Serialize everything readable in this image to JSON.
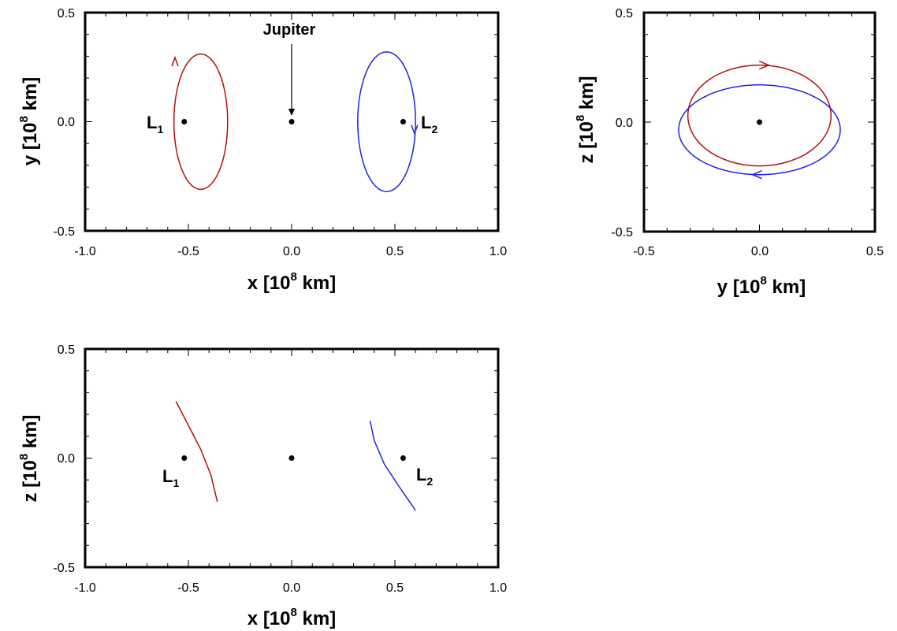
{
  "chart_data": [
    {
      "type": "line",
      "xlabel": "x  [10^8 km]",
      "ylabel": "y [10^8 km]",
      "xlim": [
        -1.0,
        1.0
      ],
      "ylim": [
        -0.5,
        0.5
      ],
      "xticks": [
        "-1.0",
        "-0.5",
        "0.0",
        "0.5",
        "1.0"
      ],
      "yticks": [
        "-0.5",
        "0.0",
        "0.5"
      ],
      "grid": false,
      "series": [
        {
          "color": "#b01010",
          "center": [
            -0.44,
            0.0
          ],
          "radii": [
            0.13,
            0.31
          ],
          "x_range": [
            -0.57,
            -0.31
          ],
          "y_range": [
            -0.31,
            0.31
          ]
        },
        {
          "color": "#2222dd",
          "center": [
            0.46,
            0.0
          ],
          "radii": [
            0.14,
            0.32
          ],
          "x_range": [
            0.32,
            0.6
          ],
          "y_range": [
            -0.32,
            0.32
          ]
        }
      ],
      "points": [
        {
          "label": "L",
          "sub": "1",
          "x": -0.52,
          "y": 0.0
        },
        {
          "label": "Jupiter",
          "x": 0.0,
          "y": 0.0
        },
        {
          "label": "L",
          "sub": "2",
          "x": 0.54,
          "y": 0.0
        }
      ]
    },
    {
      "type": "line",
      "xlabel": "y  [10^8 km]",
      "ylabel": "z [10^8 km]",
      "xlim": [
        -0.5,
        0.5
      ],
      "ylim": [
        -0.5,
        0.5
      ],
      "xticks": [
        "-0.5",
        "0.0",
        "0.5"
      ],
      "yticks": [
        "-0.5",
        "0.0",
        "0.5"
      ],
      "grid": false,
      "series": [
        {
          "color": "#b01010",
          "center": [
            0.0,
            0.03
          ],
          "radii": [
            0.31,
            0.23
          ],
          "y_range": [
            -0.31,
            0.31
          ],
          "z_range": [
            -0.2,
            0.26
          ]
        },
        {
          "color": "#2222dd",
          "center": [
            0.0,
            -0.035
          ],
          "radii": [
            0.35,
            0.205
          ],
          "y_range": [
            -0.35,
            0.35
          ],
          "z_range": [
            -0.24,
            0.17
          ]
        }
      ],
      "points": [
        {
          "x": 0.0,
          "y": 0.0
        }
      ]
    },
    {
      "type": "line",
      "xlabel": "x  [10^8 km]",
      "ylabel": "z [10^8 km]",
      "xlim": [
        -1.0,
        1.0
      ],
      "ylim": [
        -0.5,
        0.5
      ],
      "xticks": [
        "-1.0",
        "-0.5",
        "0.0",
        "0.5",
        "1.0"
      ],
      "yticks": [
        "-0.5",
        "0.0",
        "0.5"
      ],
      "grid": false,
      "series": [
        {
          "color": "#b01010",
          "x": [
            -0.56,
            -0.5,
            -0.44,
            -0.39,
            -0.36
          ],
          "y": [
            0.26,
            0.15,
            0.04,
            -0.08,
            -0.2
          ]
        },
        {
          "color": "#2222dd",
          "x": [
            0.38,
            0.4,
            0.45,
            0.52,
            0.6
          ],
          "y": [
            0.17,
            0.08,
            -0.03,
            -0.13,
            -0.24
          ]
        }
      ],
      "points": [
        {
          "label": "L",
          "sub": "1",
          "x": -0.52,
          "y": 0.0
        },
        {
          "x": 0.0,
          "y": 0.0
        },
        {
          "label": "L",
          "sub": "2",
          "x": 0.54,
          "y": 0.0
        }
      ]
    }
  ],
  "labels": {
    "jupiter": "Jupiter",
    "l": "L",
    "sub1": "1",
    "sub2": "2",
    "x_axis_main": "x  [10",
    "y_axis_main": "y  [10",
    "z_axis_main": "z [10",
    "y_axis_left": "y [10",
    "exponent": "8",
    "unit": " km]"
  },
  "colors": {
    "red_orbit": "#b01010",
    "blue_orbit": "#2222dd",
    "axes": "#000000"
  }
}
